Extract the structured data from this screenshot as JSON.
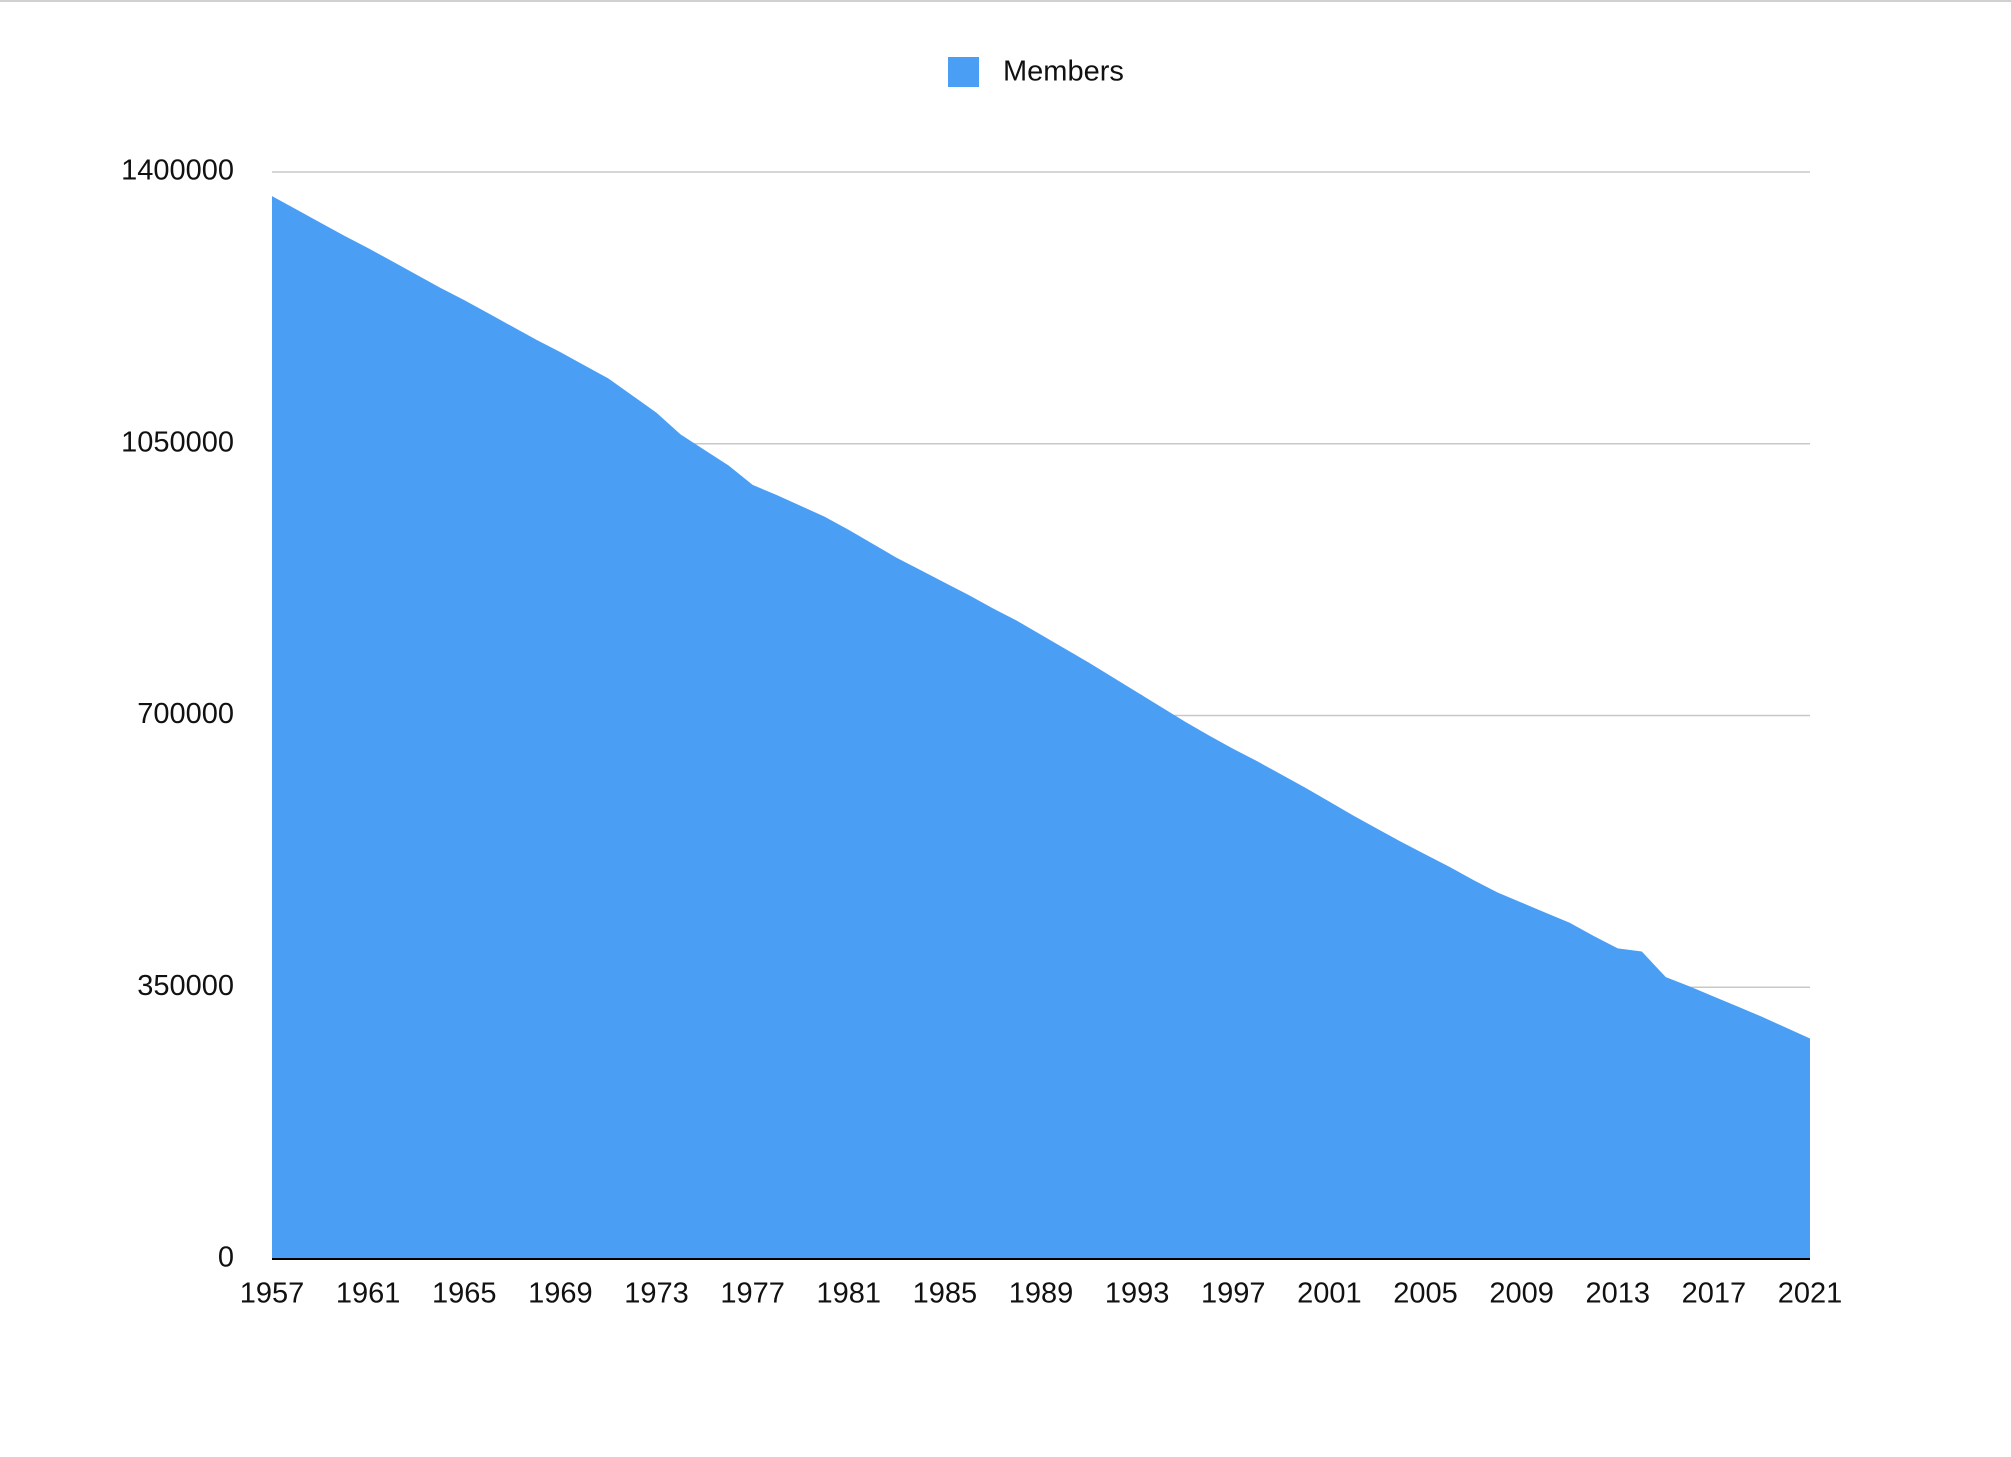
{
  "chart_data": {
    "type": "area",
    "x": [
      1957,
      1958,
      1959,
      1960,
      1961,
      1962,
      1963,
      1964,
      1965,
      1966,
      1967,
      1968,
      1969,
      1970,
      1971,
      1972,
      1973,
      1974,
      1975,
      1976,
      1977,
      1978,
      1979,
      1980,
      1981,
      1982,
      1983,
      1984,
      1985,
      1986,
      1987,
      1988,
      1989,
      1990,
      1991,
      1992,
      1993,
      1994,
      1995,
      1996,
      1997,
      1998,
      1999,
      2000,
      2001,
      2002,
      2003,
      2004,
      2005,
      2006,
      2007,
      2008,
      2009,
      2010,
      2011,
      2012,
      2013,
      2014,
      2015,
      2016,
      2017,
      2018,
      2019,
      2020,
      2021
    ],
    "series": [
      {
        "name": "Members",
        "color": "#4a9ff5",
        "values": [
          1369000,
          1352000,
          1335000,
          1318000,
          1302000,
          1285000,
          1268000,
          1251000,
          1235000,
          1218000,
          1201000,
          1184000,
          1168000,
          1151000,
          1134000,
          1112000,
          1090000,
          1062000,
          1042000,
          1022000,
          997000,
          984000,
          970000,
          956000,
          939000,
          921000,
          903000,
          887000,
          871000,
          855000,
          838000,
          822000,
          804000,
          786000,
          768000,
          749000,
          730000,
          711000,
          692000,
          674000,
          657000,
          641000,
          624000,
          607000,
          589000,
          571000,
          554000,
          537000,
          521000,
          505000,
          488000,
          472000,
          459000,
          446000,
          433000,
          416000,
          400000,
          396000,
          363000,
          351000,
          338000,
          325000,
          312000,
          298000,
          284000
        ]
      }
    ],
    "xlim": [
      1957,
      2021
    ],
    "xticks": [
      1957,
      1961,
      1965,
      1969,
      1973,
      1977,
      1981,
      1985,
      1989,
      1993,
      1997,
      2001,
      2005,
      2009,
      2013,
      2017,
      2021
    ],
    "ylim": [
      0,
      1400000
    ],
    "yticks": [
      0,
      350000,
      700000,
      1050000,
      1400000
    ],
    "grid": true,
    "legend": "top"
  }
}
